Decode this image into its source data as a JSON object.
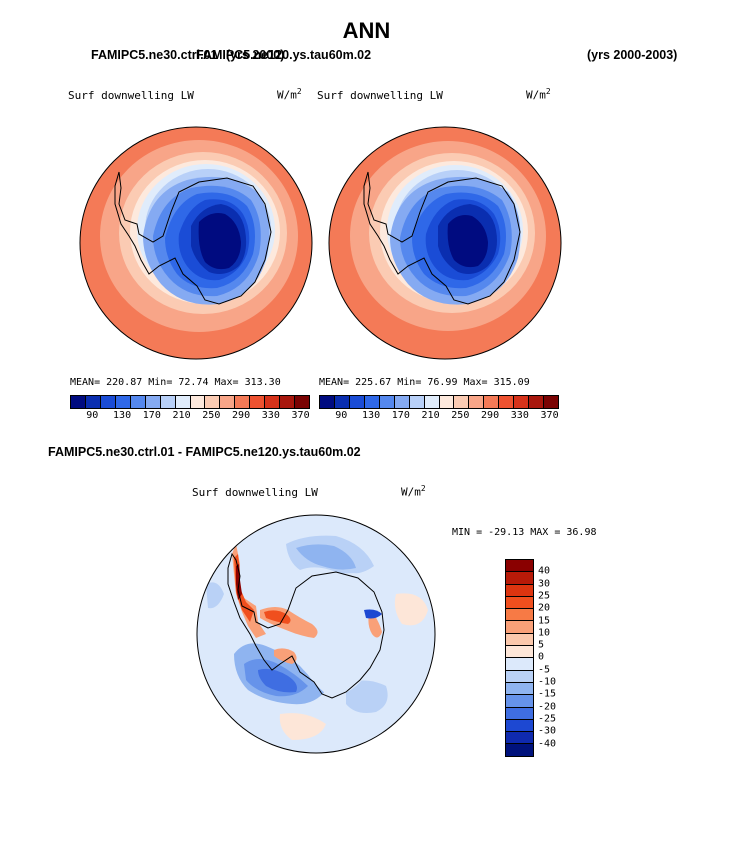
{
  "title": "ANN",
  "top_case_left": "FAMIPC5.ne30.ctrl.01",
  "top_case_middle": "FAMIPC5.ne120.ys.tau60m.02",
  "top_years_left": "(yrs 2000)",
  "top_years_right": "(yrs 2000-2003)",
  "panels": [
    {
      "label": "Surf downwelling LW",
      "unit": "W/m",
      "unit_sup": "2",
      "stats": "MEAN= 220.87   Min=   72.74   Max= 313.30"
    },
    {
      "label": "Surf downwelling LW",
      "unit": "W/m",
      "unit_sup": "2",
      "stats": "MEAN= 225.67   Min=   76.99   Max= 315.09"
    }
  ],
  "field_colorbar": {
    "colors": [
      "#000b80",
      "#0a2eb0",
      "#1a4cd6",
      "#2f68e8",
      "#5588ee",
      "#85aaf2",
      "#b8d0f8",
      "#e0ecfb",
      "#fde9dd",
      "#fbcbb3",
      "#f8a588",
      "#f47a57",
      "#ee5230",
      "#d6321a",
      "#a8170d",
      "#7a0303"
    ],
    "ticks": [
      "90",
      "130",
      "170",
      "210",
      "250",
      "290",
      "330",
      "370"
    ]
  },
  "diff_title": "FAMIPC5.ne30.ctrl.01 - FAMIPC5.ne120.ys.tau60m.02",
  "diff_label": "Surf downwelling LW",
  "diff_unit": "W/m",
  "diff_unit_sup": "2",
  "diff_stats": "MIN = -29.13 MAX =  36.98",
  "diff_colorbar": {
    "colors": [
      "#8a0000",
      "#b81a08",
      "#dd3510",
      "#f04f1e",
      "#f77a45",
      "#f9a078",
      "#fbc8ac",
      "#fde6d8",
      "#dce9fb",
      "#b9d1f6",
      "#8fb4f0",
      "#6693ea",
      "#3f6ee2",
      "#1d48d2",
      "#0f2aae",
      "#00127c"
    ],
    "ticks": [
      "40",
      "30",
      "25",
      "20",
      "15",
      "10",
      "5",
      "0",
      "-5",
      "-10",
      "-15",
      "-20",
      "-25",
      "-30",
      "-40"
    ]
  },
  "map_colors": {
    "dark_red": "#a8170d",
    "red": "#ee5230",
    "orange": "#f47a57",
    "salmon": "#f8a588",
    "peach": "#fbcbb3",
    "cream": "#fde9dd",
    "pale_blue": "#e0ecfb",
    "light_blue": "#b8d0f8",
    "mid_blue": "#85aaf2",
    "blue": "#5588ee",
    "deep_blue": "#2f68e8",
    "royal": "#1a4cd6",
    "navy": "#0a2eb0",
    "darkest": "#000b80"
  }
}
